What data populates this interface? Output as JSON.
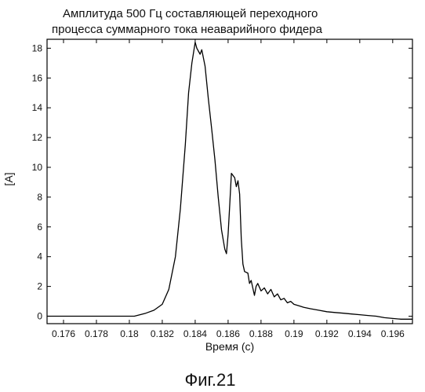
{
  "chart_data": {
    "type": "line",
    "title": [
      "Амплитуда 500 Гц составляющей переходного",
      "процесса суммарного тока неаварийного фидера"
    ],
    "xlabel": "Время (с)",
    "ylabel": "[A]",
    "xlim": [
      0.175,
      0.1972
    ],
    "ylim": [
      -0.5,
      18.6
    ],
    "x_ticks": [
      0.176,
      0.178,
      0.18,
      0.182,
      0.184,
      0.186,
      0.188,
      0.19,
      0.192,
      0.194,
      0.196
    ],
    "x_tick_labels": [
      "0.176",
      "0.178",
      "0.18",
      "0.182",
      "0.184",
      "0.186",
      "0.188",
      "0.19",
      "0.192",
      "0.194",
      "0.196"
    ],
    "y_ticks": [
      0,
      2,
      4,
      6,
      8,
      10,
      12,
      14,
      16,
      18
    ],
    "y_tick_labels": [
      "0",
      "2",
      "4",
      "6",
      "8",
      "10",
      "12",
      "14",
      "16",
      "18"
    ],
    "grid": false,
    "series": [
      {
        "color": "#000000",
        "x": [
          0.175,
          0.177,
          0.179,
          0.1803,
          0.181,
          0.1815,
          0.182,
          0.1824,
          0.1828,
          0.1831,
          0.1834,
          0.1836,
          0.1838,
          0.184,
          0.1841,
          0.1843,
          0.1844,
          0.1846,
          0.1848,
          0.185,
          0.1852,
          0.1854,
          0.1856,
          0.1858,
          0.1859,
          0.186,
          0.1861,
          0.1862,
          0.1864,
          0.1865,
          0.1866,
          0.1867,
          0.1868,
          0.1869,
          0.187,
          0.1872,
          0.1873,
          0.1874,
          0.1876,
          0.1877,
          0.1878,
          0.188,
          0.1882,
          0.1884,
          0.1886,
          0.1888,
          0.189,
          0.1892,
          0.1894,
          0.1896,
          0.1898,
          0.19,
          0.1903,
          0.1906,
          0.191,
          0.1915,
          0.192,
          0.1925,
          0.193,
          0.1935,
          0.194,
          0.1945,
          0.195,
          0.1955,
          0.196,
          0.1965,
          0.1972
        ],
        "y": [
          0.0,
          0.0,
          0.0,
          0.0,
          0.2,
          0.4,
          0.8,
          1.8,
          4.0,
          7.2,
          11.5,
          15.0,
          17.0,
          18.4,
          18.0,
          17.6,
          17.9,
          16.8,
          14.6,
          12.6,
          10.5,
          8.0,
          5.8,
          4.5,
          4.2,
          5.5,
          7.5,
          9.6,
          9.3,
          8.7,
          9.1,
          8.2,
          5.2,
          3.5,
          3.0,
          2.9,
          2.2,
          2.4,
          1.4,
          2.0,
          2.2,
          1.7,
          1.9,
          1.5,
          1.8,
          1.3,
          1.5,
          1.1,
          1.2,
          0.9,
          1.0,
          0.8,
          0.7,
          0.6,
          0.5,
          0.4,
          0.3,
          0.25,
          0.2,
          0.15,
          0.1,
          0.05,
          0.0,
          -0.1,
          -0.15,
          -0.2,
          -0.2
        ]
      }
    ],
    "caption": "Фиг.21"
  }
}
